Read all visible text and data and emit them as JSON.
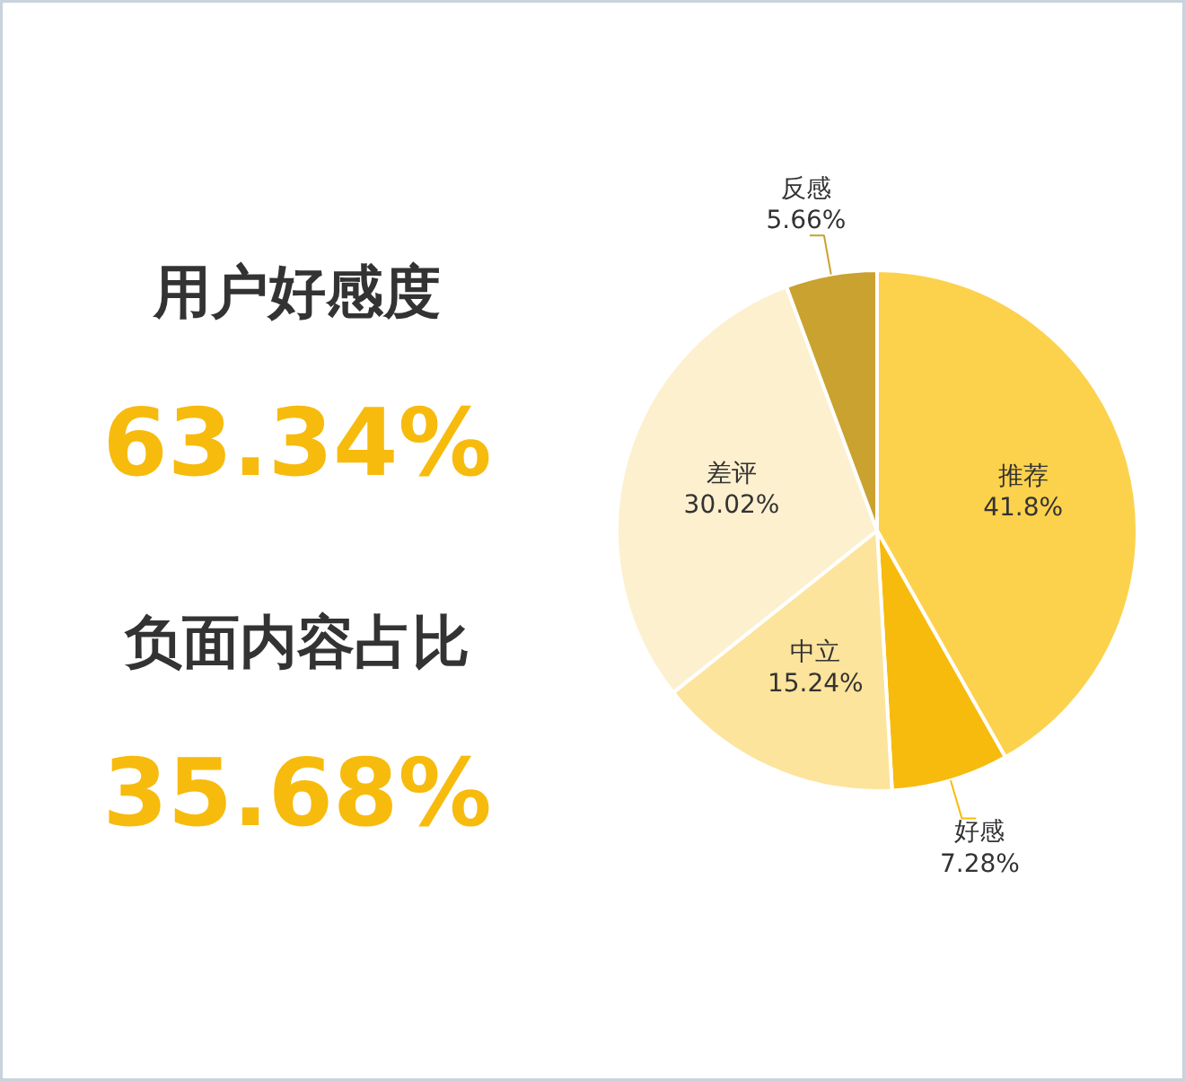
{
  "chart_data": {
    "type": "pie",
    "categories": [
      "推荐",
      "好感",
      "中立",
      "差评",
      "反感"
    ],
    "values": [
      41.8,
      7.28,
      15.24,
      30.02,
      5.66
    ],
    "value_labels": [
      "41.8%",
      "7.28%",
      "15.24%",
      "30.02%",
      "5.66%"
    ],
    "colors": [
      "#fcd24d",
      "#f7bb0d",
      "#fde49c",
      "#fdf0cf",
      "#c9a22f"
    ],
    "annotations": [
      "用户好感度",
      "63.34%",
      "负面内容占比",
      "35.68%"
    ]
  }
}
